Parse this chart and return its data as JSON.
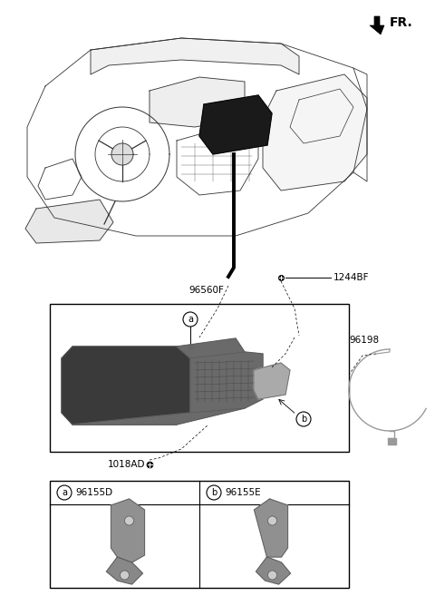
{
  "bg_color": "#ffffff",
  "fr_label": "FR.",
  "parts_96560F": "96560F",
  "parts_1244BF": "1244BF",
  "parts_96198": "96198",
  "parts_1018AD": "1018AD",
  "parts_96155D": "96155D",
  "parts_96155E": "96155E",
  "arrow_color": "#1a1a1a",
  "line_color": "#333333",
  "bracket_color": "#888888",
  "avn_dark": "#3a3a3a",
  "avn_mid": "#6a6a6a",
  "avn_light": "#aaaaaa",
  "cable_color": "#999999"
}
